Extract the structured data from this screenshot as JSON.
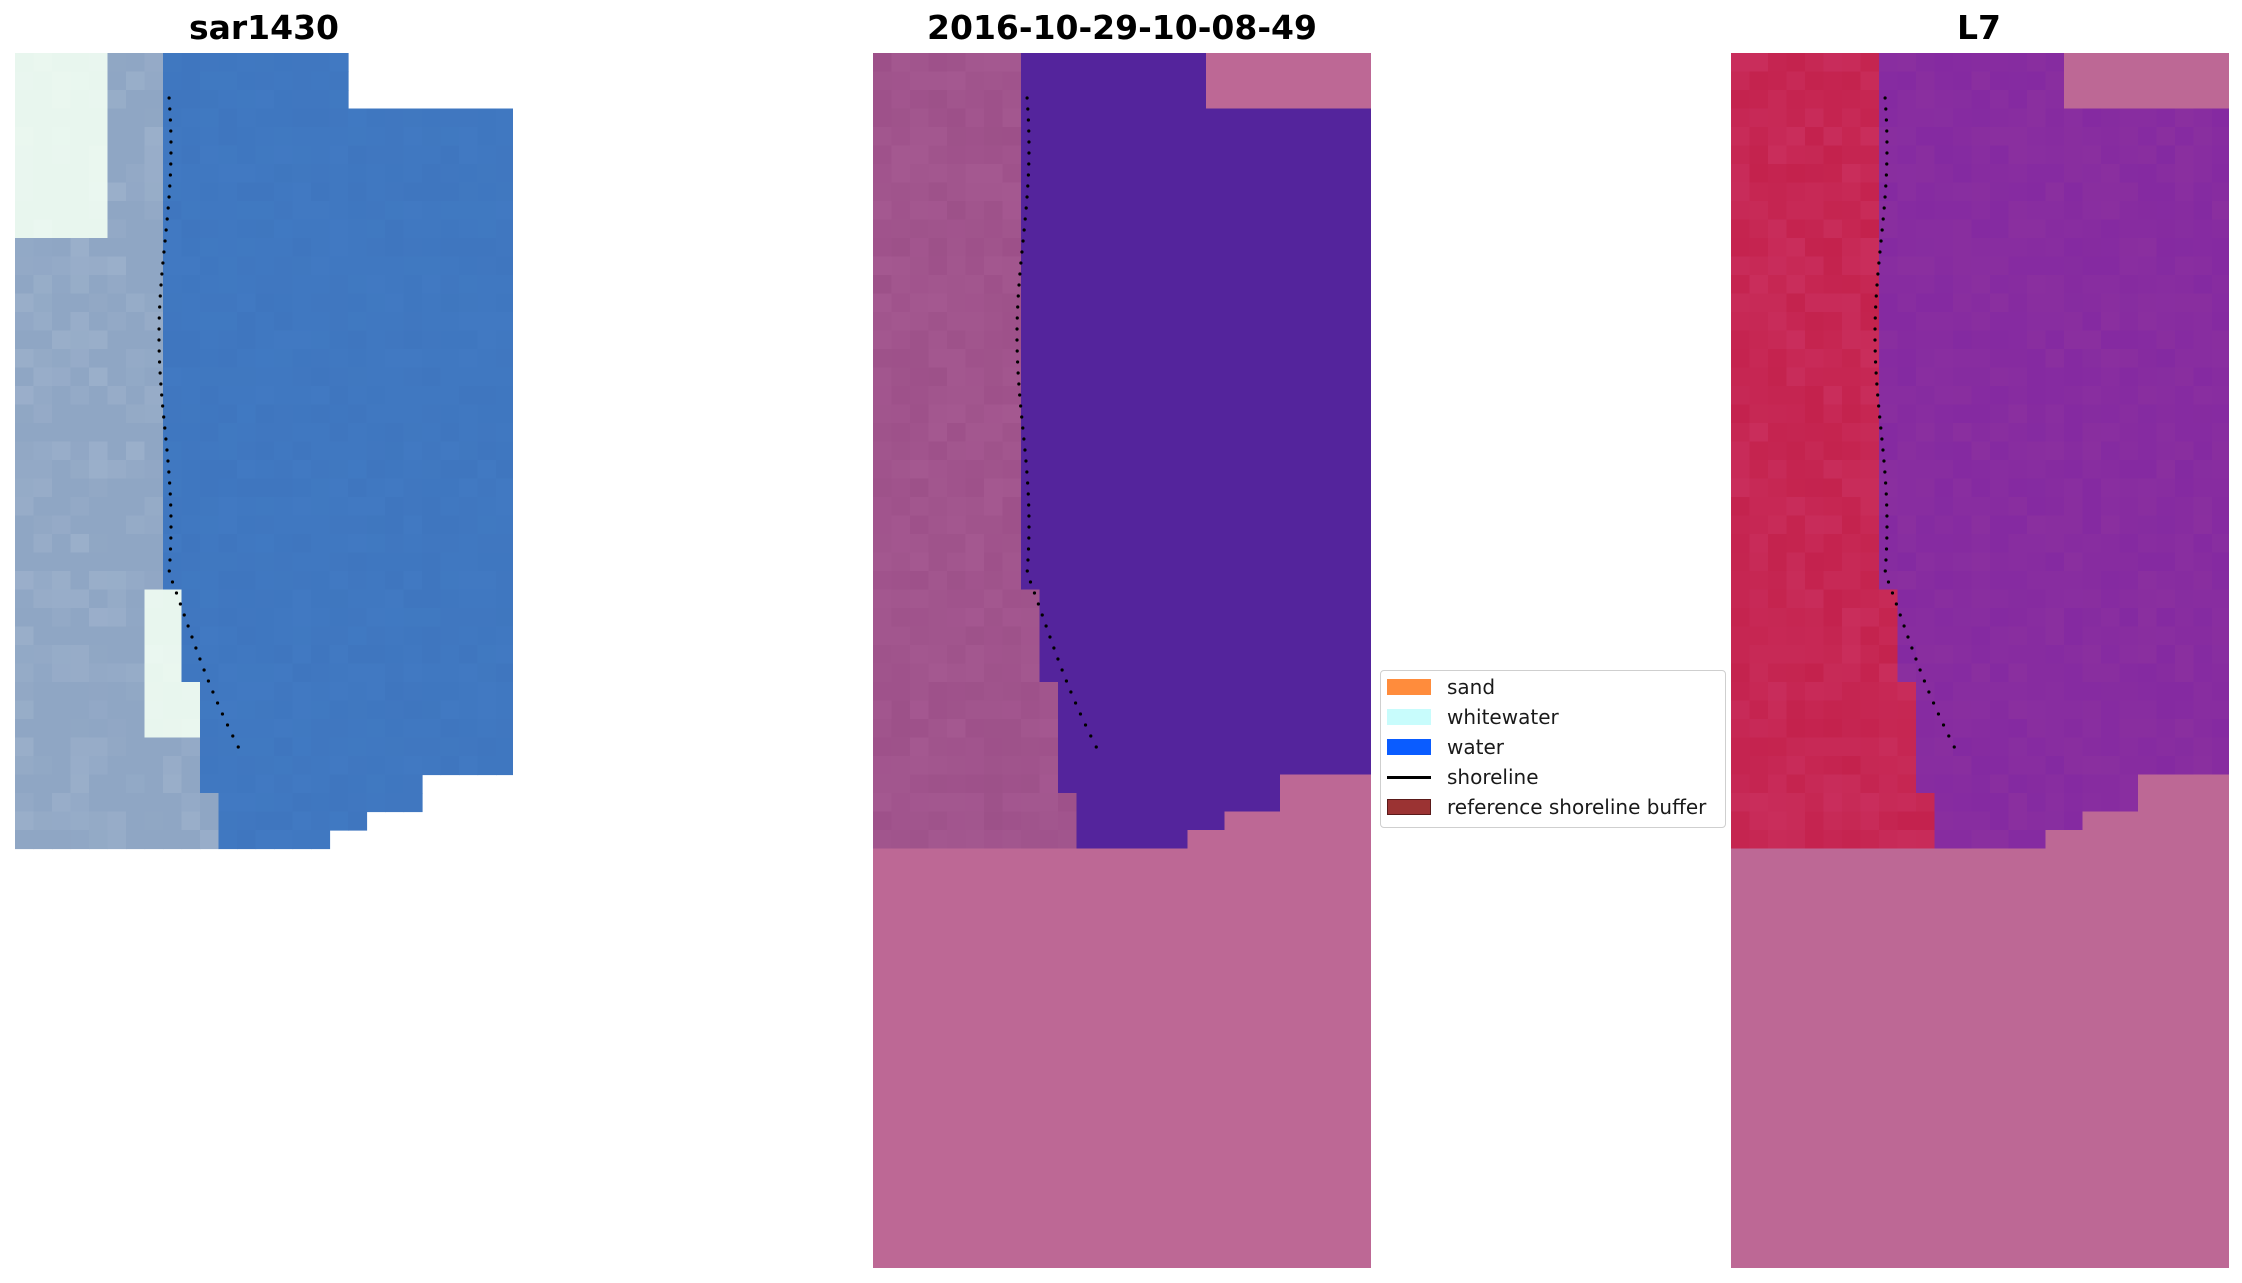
{
  "panels": [
    {
      "title": "sar1430",
      "style": "rgb"
    },
    {
      "title": "2016-10-29-10-08-49",
      "style": "classified"
    },
    {
      "title": "L7",
      "style": "ndwi"
    }
  ],
  "legend": {
    "items": [
      {
        "label": "sand",
        "kind": "patch",
        "color": "#ff8c3c"
      },
      {
        "label": "whitewater",
        "kind": "patch",
        "color": "#c8fcfc"
      },
      {
        "label": "water",
        "kind": "patch",
        "color": "#0a5cff"
      },
      {
        "label": "shoreline",
        "kind": "line",
        "color": "#000000"
      },
      {
        "label": "reference shoreline buffer",
        "kind": "patch",
        "color": "#9b3333",
        "edge": "#5a1a1a"
      }
    ]
  },
  "colors": {
    "nodata": "#bd6895",
    "water_rgb": "#3f76bf",
    "land_rgb": "#8fa6c4",
    "whitewater_rgb": "#e8f6ee",
    "water_class": "#54249c",
    "land_class": "#a45890",
    "water_ndwi": "#8a2f9f",
    "land_ndwi": "#c4224d",
    "shoreline": "#000000"
  }
}
